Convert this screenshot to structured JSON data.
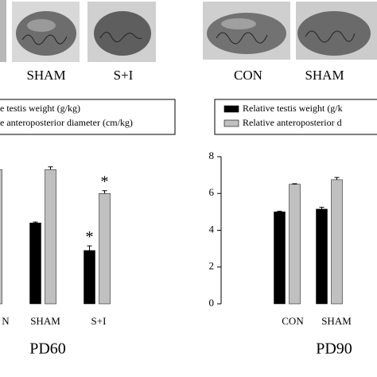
{
  "chart_data": [
    {
      "type": "bar",
      "title": "PD60",
      "photo_labels": [
        "SHAM",
        "S+I"
      ],
      "categories": [
        "N",
        "SHAM",
        "S+I"
      ],
      "series": [
        {
          "name": "e testis weight (g/kg)",
          "color": "#000000",
          "values": [
            null,
            4.4,
            2.9
          ],
          "errors": [
            null,
            0.05,
            0.25
          ],
          "stars": [
            null,
            null,
            "*"
          ]
        },
        {
          "name": "e anteroposterior diameter (cm/kg)",
          "color": "#c0c0c0",
          "values": [
            7.3,
            7.3,
            6.0
          ],
          "errors": [
            0.1,
            0.15,
            0.15
          ],
          "stars": [
            null,
            null,
            "*"
          ]
        }
      ],
      "ylim": [
        0,
        8
      ]
    },
    {
      "type": "bar",
      "title": "PD90",
      "photo_labels": [
        "CON",
        "SHAM"
      ],
      "categories": [
        "CON",
        "SHAM"
      ],
      "series": [
        {
          "name": "Relative testis weight (g/k",
          "color": "#000000",
          "values": [
            5.0,
            5.15
          ],
          "errors": [
            0.03,
            0.1
          ]
        },
        {
          "name": "Relative anteroposterior d",
          "color": "#c0c0c0",
          "values": [
            6.5,
            6.75
          ],
          "errors": [
            0.03,
            0.12
          ]
        }
      ],
      "ylim": [
        0,
        8
      ],
      "yticks": [
        0,
        2,
        4,
        6,
        8
      ]
    }
  ]
}
